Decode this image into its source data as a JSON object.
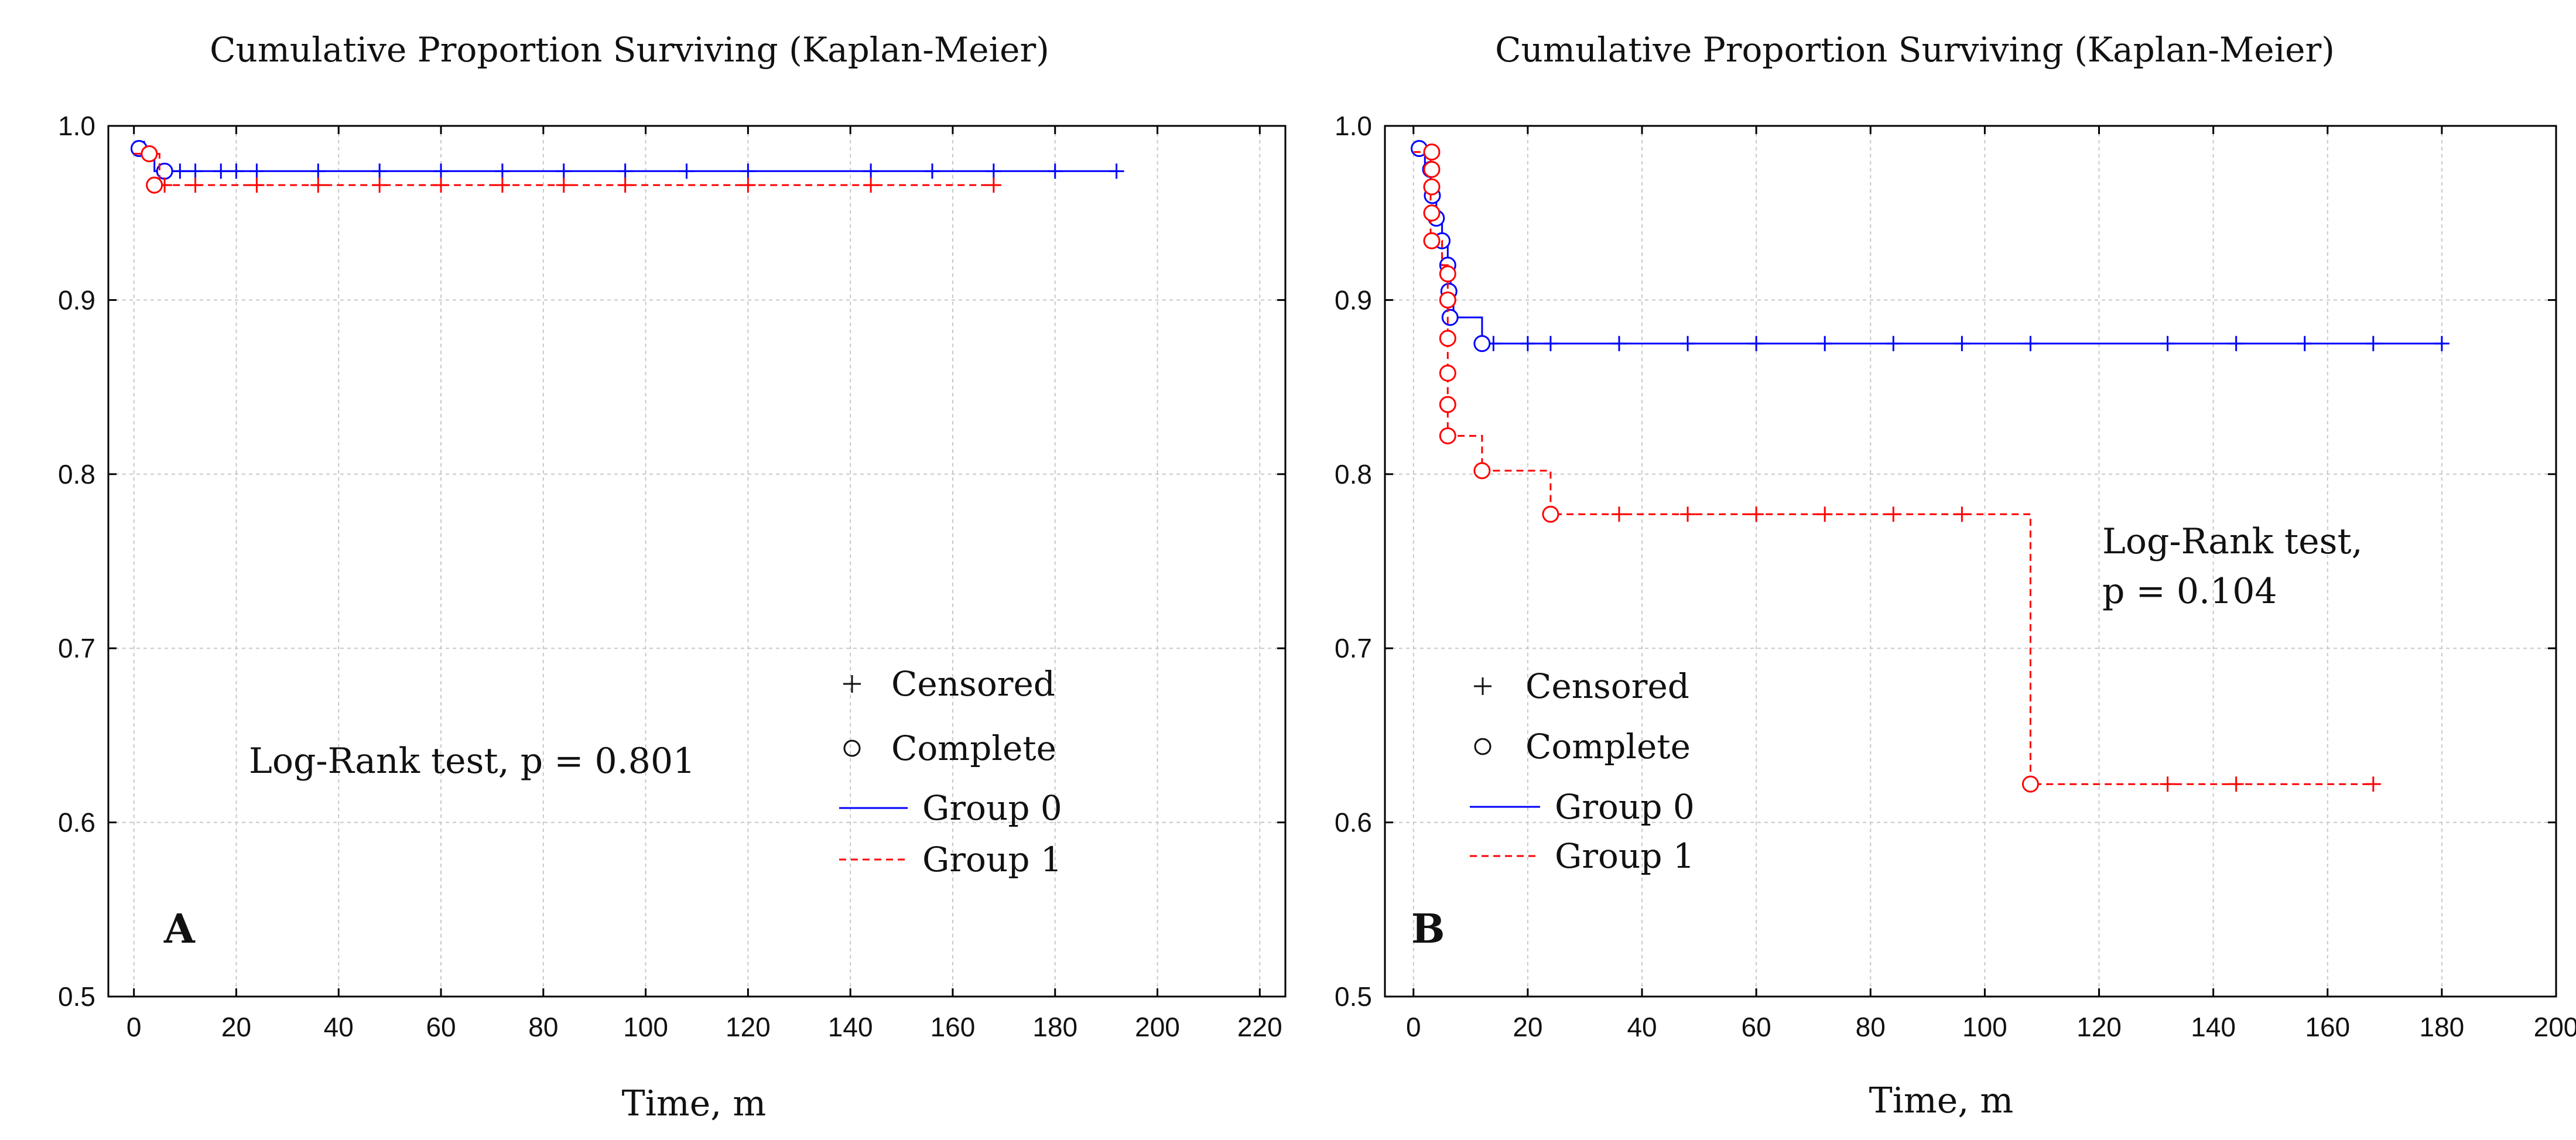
{
  "chart_data": [
    {
      "type": "line",
      "panel_label": "A",
      "title": "Cumulative Proportion Surviving (Kaplan-Meier)",
      "xlabel": "Time, m",
      "ylabel": "",
      "xlim": [
        -5,
        225
      ],
      "ylim": [
        0.5,
        1.0
      ],
      "xticks": [
        0,
        20,
        40,
        60,
        80,
        100,
        120,
        140,
        160,
        180,
        200,
        220
      ],
      "yticks": [
        0.5,
        0.6,
        0.7,
        0.8,
        0.9,
        1.0
      ],
      "ytick_labels": [
        "0.5",
        "0.6",
        "0.7",
        "0.8",
        "0.9",
        "1.0"
      ],
      "annotation": "Log-Rank test, p = 0.801",
      "legend": {
        "placement": "bottom-right",
        "censored": "Censored",
        "complete": "Complete",
        "group0": "Group 0",
        "group1": "Group 1"
      },
      "series": [
        {
          "name": "Group 0",
          "color": "#0000ff",
          "dashed": false,
          "steps": [
            [
              0,
              0.987
            ],
            [
              4,
              0.987
            ],
            [
              4,
              0.974
            ],
            [
              192,
              0.974
            ]
          ],
          "complete": [
            [
              1,
              0.987
            ],
            [
              6,
              0.974
            ]
          ],
          "censored": [
            [
              2,
              0.987
            ],
            [
              9,
              0.974
            ],
            [
              12,
              0.974
            ],
            [
              17,
              0.974
            ],
            [
              20,
              0.974
            ],
            [
              24,
              0.974
            ],
            [
              36,
              0.974
            ],
            [
              48,
              0.974
            ],
            [
              60,
              0.974
            ],
            [
              72,
              0.974
            ],
            [
              84,
              0.974
            ],
            [
              96,
              0.974
            ],
            [
              108,
              0.974
            ],
            [
              120,
              0.974
            ],
            [
              144,
              0.974
            ],
            [
              156,
              0.974
            ],
            [
              168,
              0.974
            ],
            [
              180,
              0.974
            ],
            [
              192,
              0.974
            ]
          ]
        },
        {
          "name": "Group 1",
          "color": "#ff0000",
          "dashed": true,
          "steps": [
            [
              0,
              0.984
            ],
            [
              5,
              0.984
            ],
            [
              5,
              0.966
            ],
            [
              168,
              0.966
            ]
          ],
          "complete": [
            [
              3,
              0.984
            ],
            [
              4,
              0.966
            ]
          ],
          "censored": [
            [
              6,
              0.966
            ],
            [
              12,
              0.966
            ],
            [
              24,
              0.966
            ],
            [
              36,
              0.966
            ],
            [
              48,
              0.966
            ],
            [
              60,
              0.966
            ],
            [
              72,
              0.966
            ],
            [
              84,
              0.966
            ],
            [
              96,
              0.966
            ],
            [
              120,
              0.966
            ],
            [
              144,
              0.966
            ],
            [
              168,
              0.966
            ]
          ]
        }
      ]
    },
    {
      "type": "line",
      "panel_label": "B",
      "title": "Cumulative Proportion Surviving (Kaplan-Meier)",
      "xlabel": "Time, m",
      "ylabel": "",
      "xlim": [
        -5,
        200
      ],
      "ylim": [
        0.5,
        1.0
      ],
      "xticks": [
        0,
        20,
        40,
        60,
        80,
        100,
        120,
        140,
        160,
        180,
        200
      ],
      "yticks": [
        0.5,
        0.6,
        0.7,
        0.8,
        0.9,
        1.0
      ],
      "ytick_labels": [
        "0.5",
        "0.6",
        "0.7",
        "0.8",
        "0.9",
        "1.0"
      ],
      "annotation_lines": [
        "Log-Rank test,",
        "p = 0.104"
      ],
      "legend": {
        "placement": "bottom-left",
        "censored": "Censored",
        "complete": "Complete",
        "group0": "Group 0",
        "group1": "Group 1"
      },
      "series": [
        {
          "name": "Group 0",
          "color": "#0000ff",
          "dashed": false,
          "steps": [
            [
              0,
              0.987
            ],
            [
              2,
              0.987
            ],
            [
              2,
              0.975
            ],
            [
              3,
              0.975
            ],
            [
              3,
              0.96
            ],
            [
              4,
              0.96
            ],
            [
              4,
              0.947
            ],
            [
              5,
              0.947
            ],
            [
              5,
              0.934
            ],
            [
              6,
              0.934
            ],
            [
              6,
              0.92
            ],
            [
              6.5,
              0.92
            ],
            [
              6.5,
              0.905
            ],
            [
              7,
              0.905
            ],
            [
              7,
              0.89
            ],
            [
              12,
              0.89
            ],
            [
              12,
              0.875
            ],
            [
              180,
              0.875
            ]
          ],
          "complete": [
            [
              1,
              0.987
            ],
            [
              3,
              0.975
            ],
            [
              3.3,
              0.96
            ],
            [
              4,
              0.947
            ],
            [
              5,
              0.934
            ],
            [
              6,
              0.92
            ],
            [
              6.2,
              0.905
            ],
            [
              6.4,
              0.89
            ],
            [
              12,
              0.875
            ]
          ],
          "censored": [
            [
              14,
              0.875
            ],
            [
              20,
              0.875
            ],
            [
              24,
              0.875
            ],
            [
              36,
              0.875
            ],
            [
              48,
              0.875
            ],
            [
              60,
              0.875
            ],
            [
              72,
              0.875
            ],
            [
              84,
              0.875
            ],
            [
              96,
              0.875
            ],
            [
              108,
              0.875
            ],
            [
              132,
              0.875
            ],
            [
              144,
              0.875
            ],
            [
              156,
              0.875
            ],
            [
              168,
              0.875
            ],
            [
              180,
              0.875
            ]
          ]
        },
        {
          "name": "Group 1",
          "color": "#ff0000",
          "dashed": true,
          "steps": [
            [
              0,
              0.985
            ],
            [
              3,
              0.985
            ],
            [
              3,
              0.934
            ],
            [
              5,
              0.934
            ],
            [
              5,
              0.92
            ],
            [
              6,
              0.92
            ],
            [
              6,
              0.822
            ],
            [
              12,
              0.822
            ],
            [
              12,
              0.802
            ],
            [
              24,
              0.802
            ],
            [
              24,
              0.777
            ],
            [
              108,
              0.777
            ],
            [
              108,
              0.622
            ],
            [
              168,
              0.622
            ]
          ],
          "complete": [
            [
              3.2,
              0.985
            ],
            [
              3.2,
              0.975
            ],
            [
              3.2,
              0.965
            ],
            [
              3.2,
              0.95
            ],
            [
              3.2,
              0.934
            ],
            [
              6,
              0.915
            ],
            [
              6,
              0.9
            ],
            [
              6,
              0.878
            ],
            [
              6,
              0.858
            ],
            [
              6,
              0.84
            ],
            [
              6,
              0.822
            ],
            [
              12,
              0.802
            ],
            [
              24,
              0.777
            ],
            [
              108,
              0.622
            ]
          ],
          "censored": [
            [
              36,
              0.777
            ],
            [
              48,
              0.777
            ],
            [
              60,
              0.777
            ],
            [
              72,
              0.777
            ],
            [
              84,
              0.777
            ],
            [
              96,
              0.777
            ],
            [
              132,
              0.622
            ],
            [
              144,
              0.622
            ],
            [
              168,
              0.622
            ]
          ]
        }
      ]
    }
  ]
}
